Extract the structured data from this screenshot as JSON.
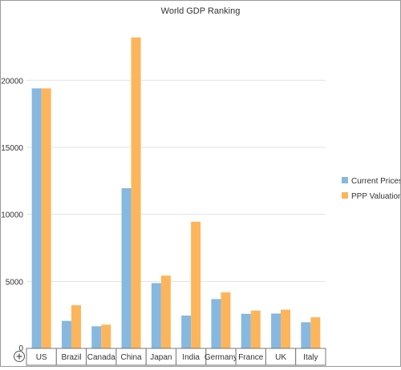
{
  "chart_data": {
    "type": "bar",
    "title": "World GDP Ranking",
    "categories": [
      "US",
      "Brazil",
      "Canada",
      "China",
      "Japan",
      "India",
      "Germany",
      "France",
      "UK",
      "Italy"
    ],
    "series": [
      {
        "name": "Current Prices",
        "color": "#86b8e0",
        "values": [
          19400,
          2050,
          1650,
          11950,
          4870,
          2450,
          3680,
          2580,
          2600,
          1950
        ]
      },
      {
        "name": "PPP Valuation",
        "color": "#fdb55c",
        "values": [
          19400,
          3220,
          1770,
          23200,
          5430,
          9450,
          4180,
          2820,
          2890,
          2320
        ]
      }
    ],
    "ylim": [
      0,
      24500
    ],
    "yticks": [
      5000,
      10000,
      15000,
      20000
    ],
    "grid": true,
    "legend_position": "right",
    "xlabel": "",
    "ylabel": ""
  },
  "icons": {
    "expand": "plus-circle-icon"
  }
}
